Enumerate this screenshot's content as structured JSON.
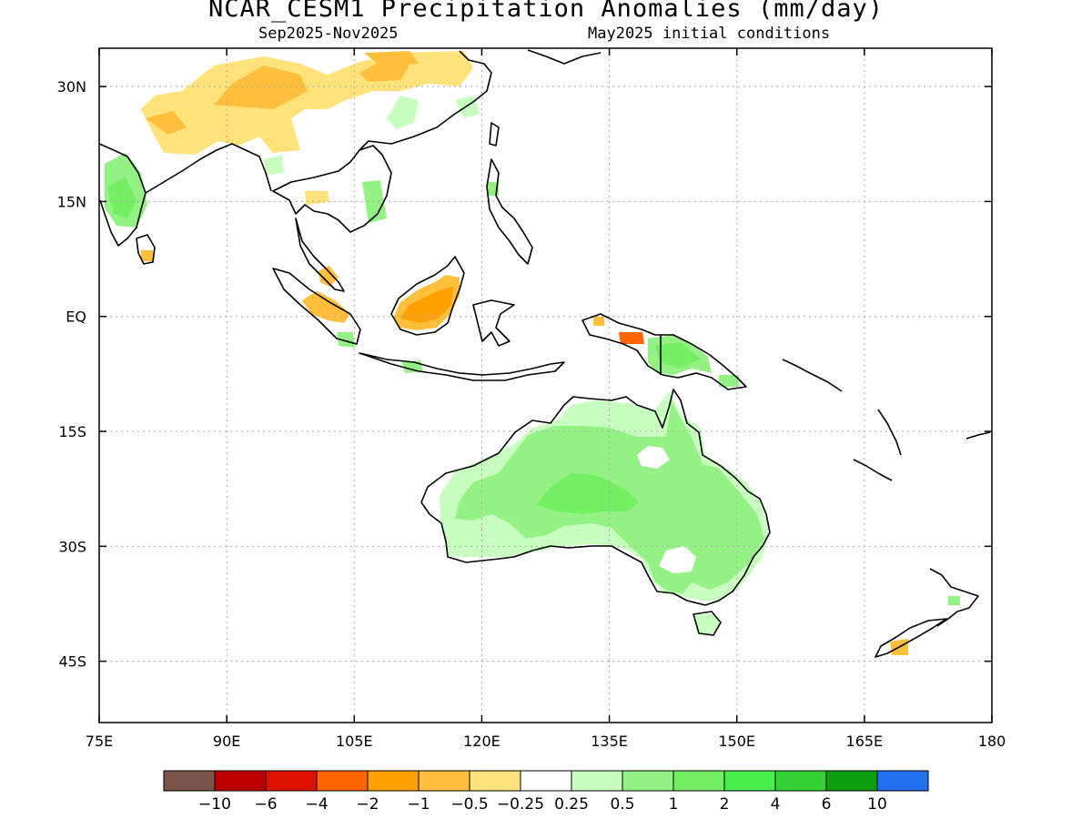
{
  "header": {
    "title": "NCAR_CESM1 Precipitation Anomalies (mm/day)",
    "period": "Sep2025-Nov2025",
    "init": "May2025 initial conditions"
  },
  "map": {
    "lon_range": [
      75,
      180
    ],
    "lat_range": [
      -53,
      35
    ],
    "grid": true,
    "lat_ticks": [
      {
        "value": 30,
        "label": "30N"
      },
      {
        "value": 15,
        "label": "15N"
      },
      {
        "value": 0,
        "label": "EQ"
      },
      {
        "value": -15,
        "label": "15S"
      },
      {
        "value": -30,
        "label": "30S"
      },
      {
        "value": -45,
        "label": "45S"
      }
    ],
    "lon_ticks": [
      {
        "value": 75,
        "label": "75E"
      },
      {
        "value": 90,
        "label": "90E"
      },
      {
        "value": 105,
        "label": "105E"
      },
      {
        "value": 120,
        "label": "120E"
      },
      {
        "value": 135,
        "label": "135E"
      },
      {
        "value": 150,
        "label": "150E"
      },
      {
        "value": 165,
        "label": "165E"
      },
      {
        "value": 180,
        "label": "180"
      }
    ]
  },
  "colorbar": {
    "colors": [
      "#7a5446",
      "#bb0000",
      "#dd1100",
      "#ff6600",
      "#ffa000",
      "#ffbf3c",
      "#ffe27a",
      "#ffffff",
      "#c8ffc0",
      "#94f284",
      "#74ee63",
      "#4aee4a",
      "#36d236",
      "#0e9e0e",
      "#2070ee"
    ],
    "labels": [
      "-10",
      "-6",
      "-4",
      "-2",
      "-1",
      "-0.5",
      "-0.25",
      "0.25",
      "0.5",
      "1",
      "2",
      "4",
      "6",
      "10"
    ]
  },
  "anomalies": [
    {
      "region": "Australia",
      "lon": [
        114,
        153
      ],
      "lat": [
        -38,
        -11
      ],
      "level": 0.5
    },
    {
      "region": "Central Australia",
      "lon": [
        129,
        140
      ],
      "lat": [
        -26,
        -18
      ],
      "level": 1
    },
    {
      "region": "Borneo",
      "lon": [
        112,
        119
      ],
      "lat": [
        -2,
        3
      ],
      "level": -1
    },
    {
      "region": "Sumatra",
      "lon": [
        97,
        103
      ],
      "lat": [
        -2,
        3
      ],
      "level": -0.5
    },
    {
      "region": "New Guinea",
      "lon": [
        141,
        147
      ],
      "lat": [
        -10,
        -4
      ],
      "level": 1
    },
    {
      "region": "Himalaya / Tibet",
      "lon": [
        81,
        121
      ],
      "lat": [
        24,
        35
      ],
      "level": -0.5
    },
    {
      "region": "India west coast",
      "lon": [
        76,
        80
      ],
      "lat": [
        12,
        21
      ],
      "level": 0.5
    }
  ]
}
